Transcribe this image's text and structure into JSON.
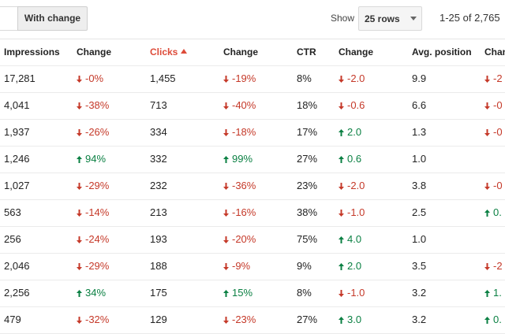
{
  "toolbar": {
    "filter_button": "With change",
    "show_label": "Show",
    "rows_select": "25 rows",
    "range": "1-25 of 2,765"
  },
  "table": {
    "headers": [
      "Impressions",
      "Change",
      "Clicks",
      "Change",
      "CTR",
      "Change",
      "Avg. position",
      "Change"
    ],
    "rows": [
      [
        "17,281",
        "-0%",
        "1,455",
        "-19%",
        "8%",
        "-2.0",
        "9.9",
        "-2"
      ],
      [
        "4,041",
        "-38%",
        "713",
        "-40%",
        "18%",
        "-0.6",
        "6.6",
        "-0"
      ],
      [
        "1,937",
        "-26%",
        "334",
        "-18%",
        "17%",
        "2.0",
        "1.3",
        "-0"
      ],
      [
        "1,246",
        "94%",
        "332",
        "99%",
        "27%",
        "0.6",
        "1.0",
        null
      ],
      [
        "1,027",
        "-29%",
        "232",
        "-36%",
        "23%",
        "-2.0",
        "3.8",
        "-0"
      ],
      [
        "563",
        "-14%",
        "213",
        "-16%",
        "38%",
        "-1.0",
        "2.5",
        "0."
      ],
      [
        "256",
        "-24%",
        "193",
        "-20%",
        "75%",
        "4.0",
        "1.0",
        null
      ],
      [
        "2,046",
        "-29%",
        "188",
        "-9%",
        "9%",
        "2.0",
        "3.5",
        "-2"
      ],
      [
        "2,256",
        "34%",
        "175",
        "15%",
        "8%",
        "-1.0",
        "3.2",
        "1."
      ],
      [
        "479",
        "-32%",
        "129",
        "-23%",
        "27%",
        "3.0",
        "3.2",
        "0."
      ]
    ]
  }
}
